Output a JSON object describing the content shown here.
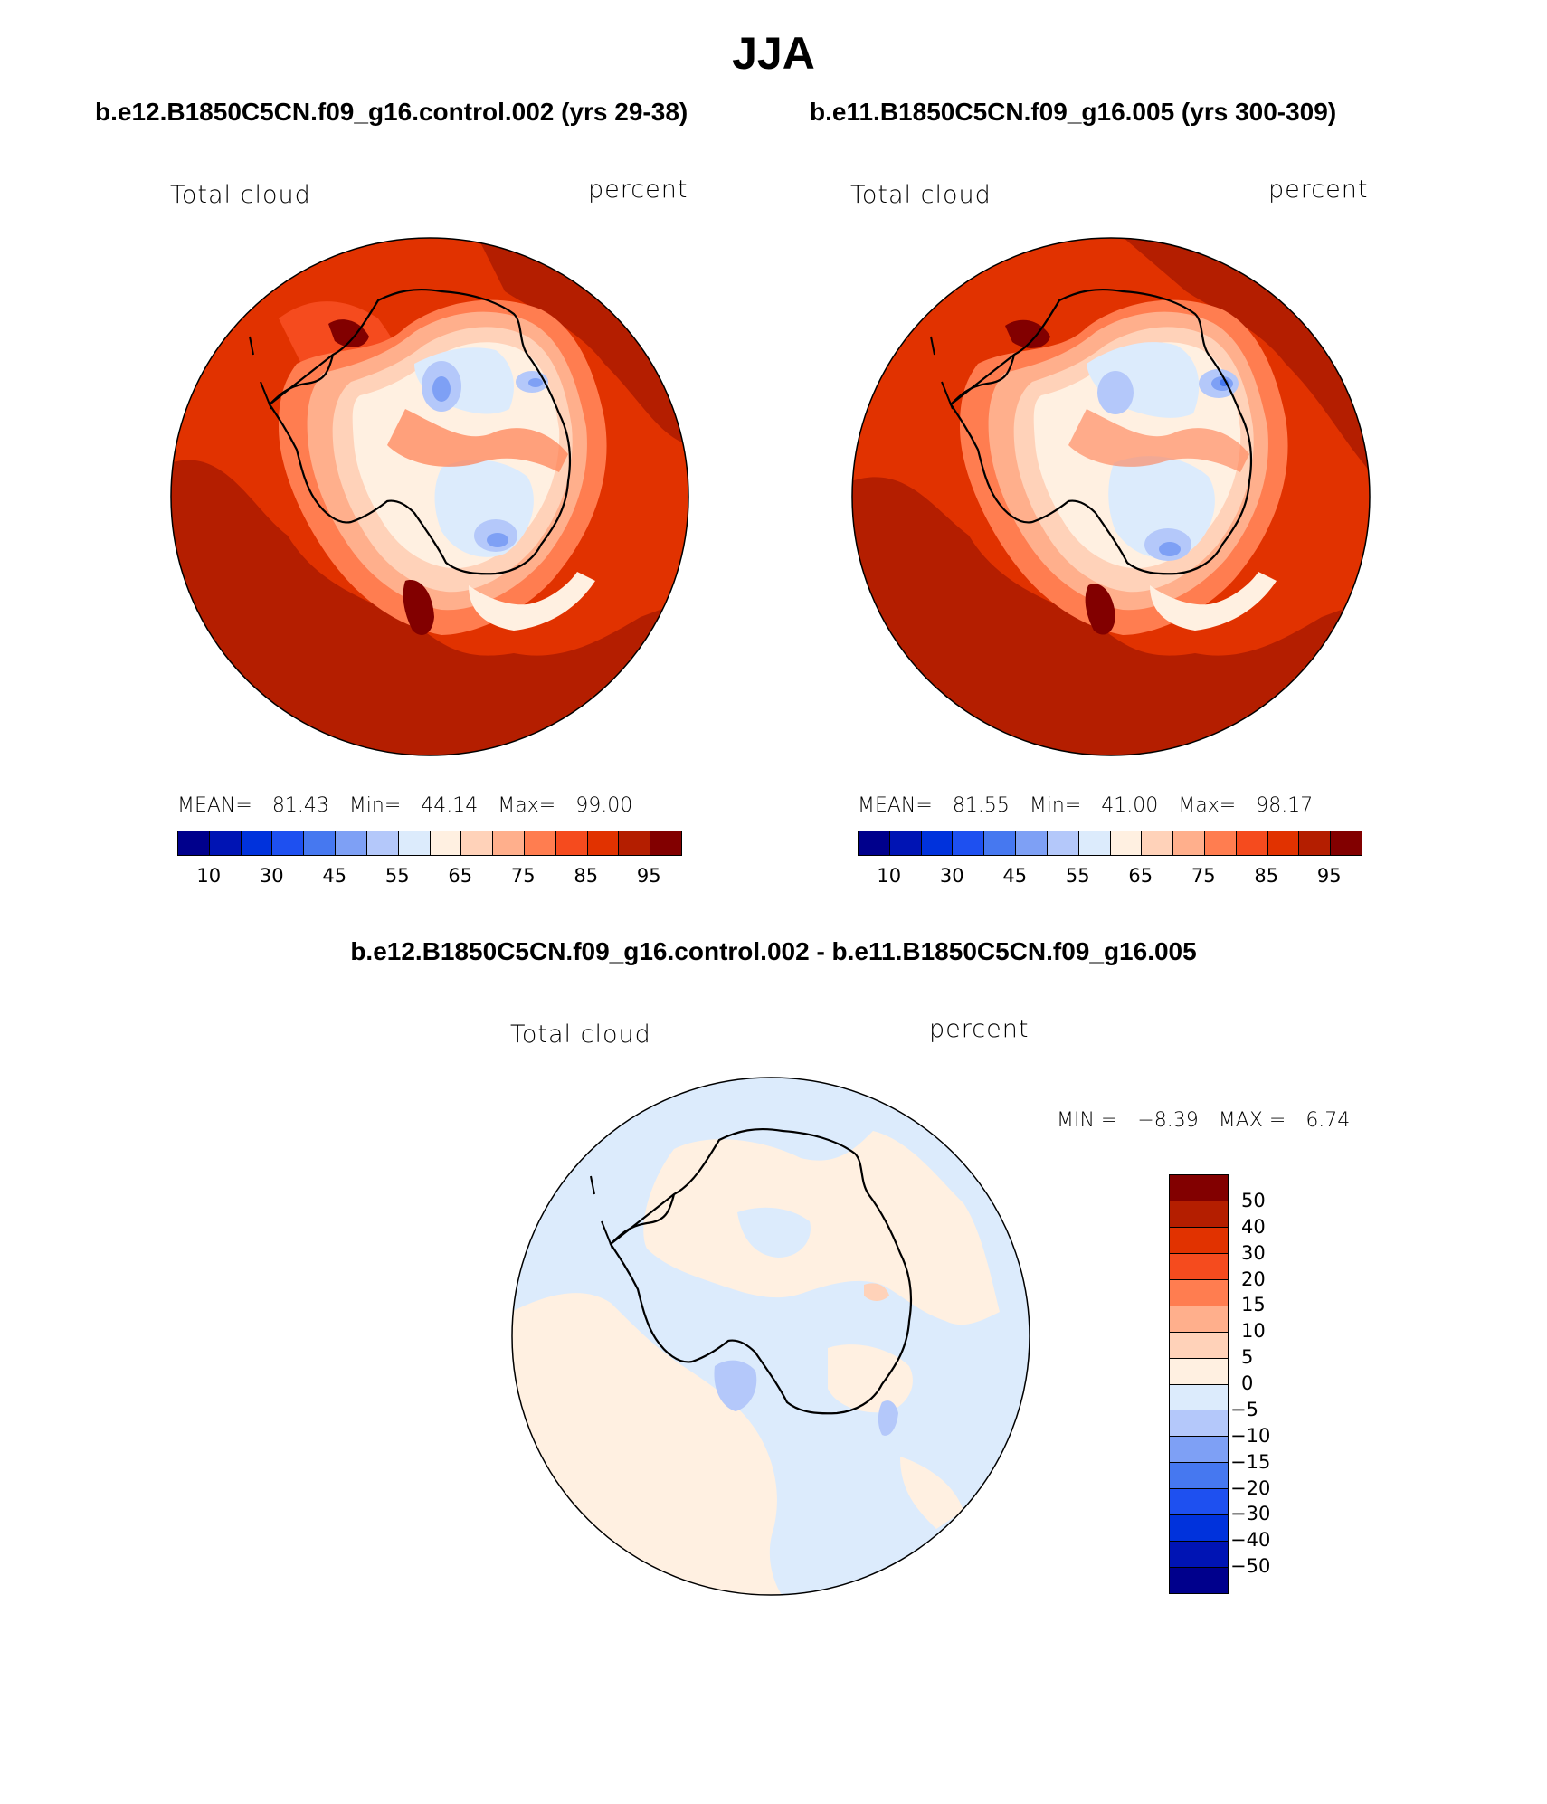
{
  "title": "JJA",
  "panels": [
    {
      "case": "b.e12.B1850C5CN.f09_g16.control.002 (yrs 29-38)",
      "variable": "Total cloud",
      "units": "percent",
      "stats": {
        "mean_label": "MEAN=",
        "mean": "81.43",
        "min_label": "Min=",
        "min": "44.14",
        "max_label": "Max=",
        "max": "99.00"
      }
    },
    {
      "case": "b.e11.B1850C5CN.f09_g16.005 (yrs 300-309)",
      "variable": "Total cloud",
      "units": "percent",
      "stats": {
        "mean_label": "MEAN=",
        "mean": "81.55",
        "min_label": "Min=",
        "min": "41.00",
        "max_label": "Max=",
        "max": "98.17"
      }
    }
  ],
  "difference": {
    "case": "b.e12.B1850C5CN.f09_g16.control.002 - b.e11.B1850C5CN.f09_g16.005",
    "variable": "Total cloud",
    "units": "percent",
    "min_label": "MIN =",
    "min": "−8.39",
    "max_label": "MAX =",
    "max": "6.74"
  },
  "colorbar_abs": {
    "colors": [
      "#00008c",
      "#0014b4",
      "#0032dc",
      "#1e50f0",
      "#4678f0",
      "#7ea0f5",
      "#b4c8fa",
      "#dcebfc",
      "#fff0e1",
      "#ffd2b9",
      "#ffaf8c",
      "#ff7d50",
      "#f54b1e",
      "#e13200",
      "#b41e00",
      "#820000"
    ],
    "tick_labels": [
      "10",
      "30",
      "45",
      "55",
      "65",
      "75",
      "85",
      "95"
    ]
  },
  "colorbar_diff": {
    "colors": [
      "#820000",
      "#b41e00",
      "#e13200",
      "#f54b1e",
      "#ff7d50",
      "#ffaf8c",
      "#ffd2b9",
      "#fff0e1",
      "#dcebfc",
      "#b4c8fa",
      "#7ea0f5",
      "#4678f0",
      "#1e50f0",
      "#0032dc",
      "#0014b4",
      "#00008c"
    ],
    "tick_labels": [
      "50",
      "40",
      "30",
      "20",
      "15",
      "10",
      "5",
      "0",
      "−5",
      "−10",
      "−15",
      "−20",
      "−30",
      "−40",
      "−50"
    ]
  }
}
